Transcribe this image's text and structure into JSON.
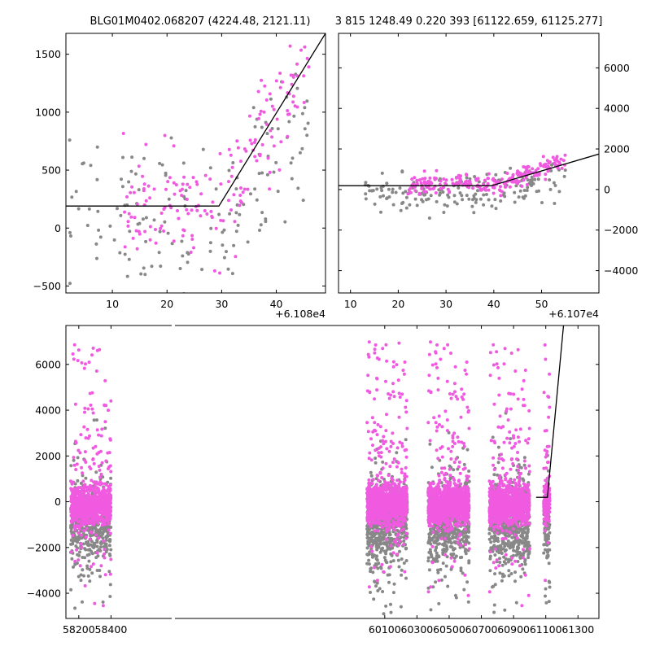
{
  "colors": {
    "primary_points": "#f05ae0",
    "secondary_points": "#888888",
    "model_line": "#000000",
    "background": "#ffffff"
  },
  "header": {
    "left_title": "BLG01M0402.068207 (4224.48, 2121.11)",
    "right_title": "3 815 1248.49 0.220 393 [61122.659, 61125.277]"
  },
  "chart_data": [
    {
      "name": "zoom-left",
      "type": "scatter",
      "xlim": [
        1.5,
        49
      ],
      "ylim": [
        -560,
        1680
      ],
      "xticks": [
        10,
        20,
        30,
        40
      ],
      "xtick_labels": [
        "10",
        "20",
        "30",
        "40"
      ],
      "yticks": [
        -500,
        0,
        500,
        1000,
        1500
      ],
      "ytick_labels": [
        "−500",
        "0",
        "500",
        "1000",
        "1500"
      ],
      "y_axis_side": "left",
      "x_offset_label": "+6.108e4",
      "model": [
        [
          1.5,
          190
        ],
        [
          29.5,
          190
        ],
        [
          49,
          1680
        ]
      ],
      "series": [
        {
          "name": "magenta",
          "color_key": "primary_points",
          "x_range": [
            12,
            46
          ],
          "n": 180,
          "trend": "ramp",
          "ramp_start": 29.5,
          "base": 190,
          "slope": 76,
          "scatter": 230
        },
        {
          "name": "grey",
          "color_key": "secondary_points",
          "x_range": [
            2,
            46
          ],
          "n": 150,
          "trend": "ramp",
          "ramp_start": 29.5,
          "base": 60,
          "slope": 60,
          "scatter": 330
        }
      ]
    },
    {
      "name": "zoom-right",
      "type": "scatter",
      "xlim": [
        7.5,
        62
      ],
      "ylim": [
        -5100,
        7700
      ],
      "xticks": [
        10,
        20,
        30,
        40,
        50
      ],
      "xtick_labels": [
        "10",
        "20",
        "30",
        "40",
        "50"
      ],
      "yticks": [
        -4000,
        -2000,
        0,
        2000,
        4000,
        6000
      ],
      "ytick_labels": [
        "−4000",
        "−2000",
        "0",
        "2000",
        "4000",
        "6000"
      ],
      "y_axis_side": "right",
      "x_offset_label": "+6.107e4",
      "model": [
        [
          7.5,
          190
        ],
        [
          39.5,
          190
        ],
        [
          62,
          1750
        ]
      ],
      "series": [
        {
          "name": "magenta",
          "color_key": "primary_points",
          "x_range": [
            22,
            55
          ],
          "n": 240,
          "trend": "ramp",
          "ramp_start": 39.5,
          "base": 200,
          "slope": 80,
          "scatter": 230
        },
        {
          "name": "grey",
          "color_key": "secondary_points",
          "x_range": [
            13,
            55
          ],
          "n": 170,
          "trend": "ramp",
          "ramp_start": 39.5,
          "base": -250,
          "slope": 60,
          "scatter": 480
        }
      ]
    },
    {
      "name": "full-light-curve",
      "type": "scatter",
      "xlim": [
        58120,
        61430
      ],
      "ylim": [
        -5100,
        7700
      ],
      "xticks": [
        58200,
        58400,
        60100,
        60300,
        60500,
        60700,
        60900,
        61100,
        61300
      ],
      "xtick_labels": [
        "58200",
        "58400",
        "60100",
        "60300",
        "60500",
        "60700",
        "60900",
        "61100",
        "61300"
      ],
      "yticks": [
        -4000,
        -2000,
        0,
        2000,
        4000,
        6000
      ],
      "ytick_labels": [
        "−4000",
        "−2000",
        "0",
        "2000",
        "4000",
        "6000"
      ],
      "y_axis_side": "left",
      "axis_break": true,
      "model": [
        [
          61040,
          190
        ],
        [
          61110,
          190
        ],
        [
          61210,
          7700
        ]
      ],
      "seasons": [
        {
          "x_range": [
            58150,
            58400
          ],
          "n_magenta": 900,
          "n_grey": 500
        },
        {
          "x_range": [
            59990,
            60240
          ],
          "n_magenta": 1100,
          "n_grey": 600
        },
        {
          "x_range": [
            60370,
            60625
          ],
          "n_magenta": 1100,
          "n_grey": 600
        },
        {
          "x_range": [
            60750,
            61000
          ],
          "n_magenta": 1100,
          "n_grey": 600
        },
        {
          "x_range": [
            61087,
            61125
          ],
          "n_magenta": 150,
          "n_grey": 100
        }
      ]
    }
  ]
}
